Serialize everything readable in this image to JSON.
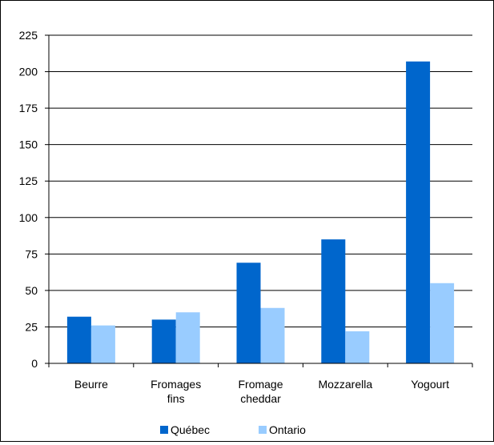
{
  "chart_data": {
    "type": "bar",
    "categories": [
      [
        "Beurre"
      ],
      [
        "Fromages",
        "fins"
      ],
      [
        "Fromage",
        "cheddar"
      ],
      [
        "Mozzarella"
      ],
      [
        "Yogourt"
      ]
    ],
    "series": [
      {
        "name": "Québec",
        "color": "#0066CC",
        "values": [
          32,
          30,
          69,
          85,
          207
        ]
      },
      {
        "name": "Ontario",
        "color": "#99CCFF",
        "values": [
          26,
          35,
          38,
          22,
          55
        ]
      }
    ],
    "ylim": [
      0,
      225
    ],
    "yticks": [
      0,
      25,
      50,
      75,
      100,
      125,
      150,
      175,
      200,
      225
    ],
    "grid": true,
    "legend": "bottom-center",
    "title": "",
    "xlabel": "",
    "ylabel": ""
  }
}
